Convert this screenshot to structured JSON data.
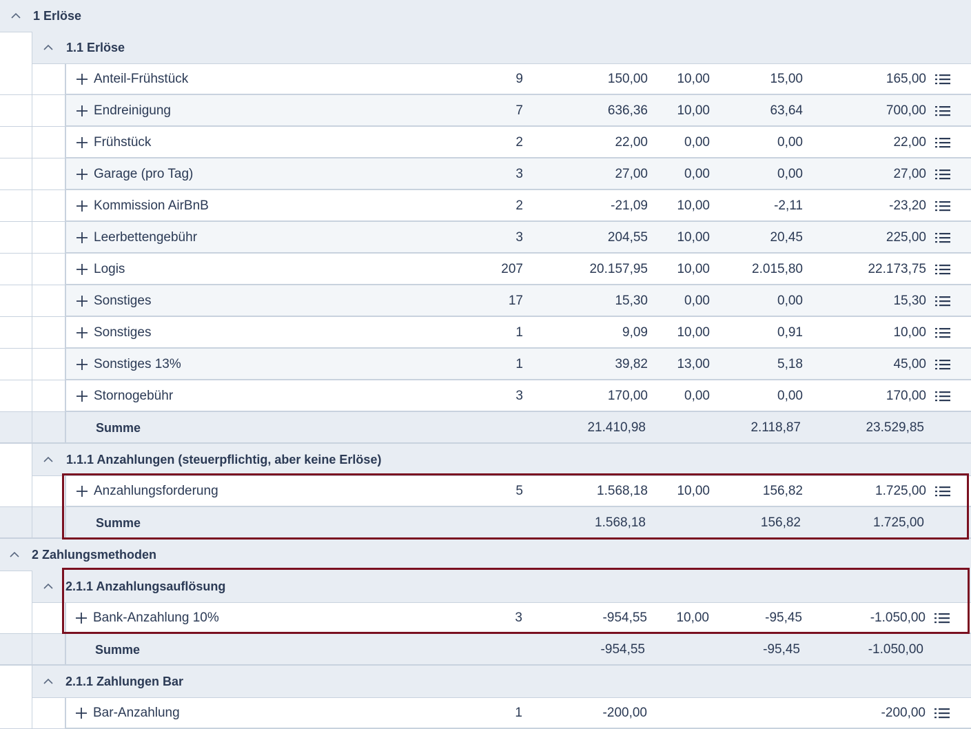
{
  "groups": {
    "g1": "1 Erlöse",
    "g1_1": "1.1 Erlöse",
    "g1_1_1": "1.1.1 Anzahlungen (steuerpflichtig, aber keine Erlöse)",
    "g2": "2 Zahlungsmethoden",
    "g2_1_1a": "2.1.1 Anzahlungsauflösung",
    "g2_1_1b": "2.1.1 Zahlungen Bar"
  },
  "erloese_rows": [
    {
      "name": "Anteil-Frühstück",
      "qty": "9",
      "net": "150,00",
      "rate": "10,00",
      "tax": "15,00",
      "gross": "165,00"
    },
    {
      "name": "Endreinigung",
      "qty": "7",
      "net": "636,36",
      "rate": "10,00",
      "tax": "63,64",
      "gross": "700,00"
    },
    {
      "name": "Frühstück",
      "qty": "2",
      "net": "22,00",
      "rate": "0,00",
      "tax": "0,00",
      "gross": "22,00"
    },
    {
      "name": "Garage (pro Tag)",
      "qty": "3",
      "net": "27,00",
      "rate": "0,00",
      "tax": "0,00",
      "gross": "27,00"
    },
    {
      "name": "Kommission AirBnB",
      "qty": "2",
      "net": "-21,09",
      "rate": "10,00",
      "tax": "-2,11",
      "gross": "-23,20"
    },
    {
      "name": "Leerbettengebühr",
      "qty": "3",
      "net": "204,55",
      "rate": "10,00",
      "tax": "20,45",
      "gross": "225,00"
    },
    {
      "name": "Logis",
      "qty": "207",
      "net": "20.157,95",
      "rate": "10,00",
      "tax": "2.015,80",
      "gross": "22.173,75"
    },
    {
      "name": "Sonstiges",
      "qty": "17",
      "net": "15,30",
      "rate": "0,00",
      "tax": "0,00",
      "gross": "15,30"
    },
    {
      "name": "Sonstiges",
      "qty": "1",
      "net": "9,09",
      "rate": "10,00",
      "tax": "0,91",
      "gross": "10,00"
    },
    {
      "name": "Sonstiges 13%",
      "qty": "1",
      "net": "39,82",
      "rate": "13,00",
      "tax": "5,18",
      "gross": "45,00"
    },
    {
      "name": "Stornogebühr",
      "qty": "3",
      "net": "170,00",
      "rate": "0,00",
      "tax": "0,00",
      "gross": "170,00"
    }
  ],
  "erloese_sum": {
    "label": "Summe",
    "net": "21.410,98",
    "tax": "2.118,87",
    "gross": "23.529,85"
  },
  "anzahlungen_row": {
    "name": "Anzahlungsforderung",
    "qty": "5",
    "net": "1.568,18",
    "rate": "10,00",
    "tax": "156,82",
    "gross": "1.725,00"
  },
  "anzahlungen_sum": {
    "label": "Summe",
    "net": "1.568,18",
    "tax": "156,82",
    "gross": "1.725,00"
  },
  "aufloesung_row": {
    "name": "Bank-Anzahlung 10%",
    "qty": "3",
    "net": "-954,55",
    "rate": "10,00",
    "tax": "-95,45",
    "gross": "-1.050,00"
  },
  "aufloesung_sum": {
    "label": "Summe",
    "net": "-954,55",
    "tax": "-95,45",
    "gross": "-1.050,00"
  },
  "bar_row": {
    "name": "Bar-Anzahlung",
    "qty": "1",
    "net": "-200,00",
    "rate": "",
    "tax": "",
    "gross": "-200,00"
  },
  "colors": {
    "highlight": "#7a1020",
    "header_bg": "#e8edf3",
    "text": "#2b3a55"
  }
}
